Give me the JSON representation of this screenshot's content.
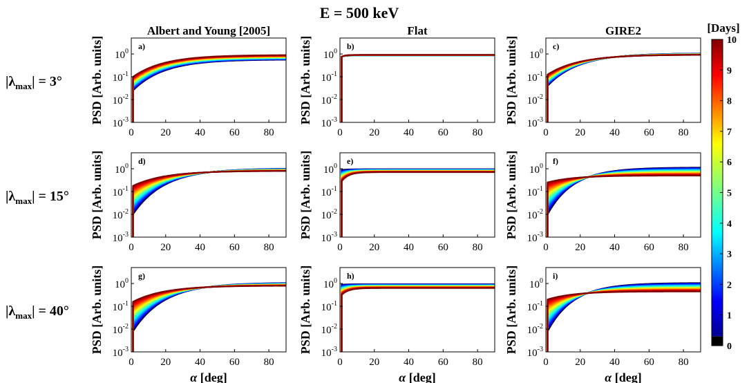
{
  "figure": {
    "title": "E = 500 keV",
    "columns": [
      "Albert and Young [2005]",
      "Flat",
      "GIRE2"
    ],
    "rows": [
      {
        "label_prefix": "|λ",
        "label_sub": "max",
        "label_suffix": "| = 3°"
      },
      {
        "label_prefix": "|λ",
        "label_sub": "max",
        "label_suffix": "| = 15°"
      },
      {
        "label_prefix": "|λ",
        "label_sub": "max",
        "label_suffix": "| = 40°"
      }
    ],
    "ylabel": "PSD [Arb. units]",
    "xlabel_symbol": "α",
    "xlabel_unit": " [deg]",
    "x_ticks": [
      "0",
      "20",
      "40",
      "60",
      "80"
    ],
    "x_tick_values": [
      0,
      20,
      40,
      60,
      80
    ],
    "xlim": [
      0,
      90
    ],
    "ylim_log10": [
      -3,
      0.7
    ],
    "y_ticks": [
      {
        "base": "10",
        "exp": "-3",
        "log": -3
      },
      {
        "base": "10",
        "exp": "-2",
        "log": -2
      },
      {
        "base": "10",
        "exp": "-1",
        "log": -1
      },
      {
        "base": "10",
        "exp": "0",
        "log": 0
      }
    ],
    "yscale": "log",
    "colorbar": {
      "title": "[Days]",
      "ticks": [
        "0",
        "1",
        "2",
        "3",
        "4",
        "5",
        "6",
        "7",
        "8",
        "9",
        "10"
      ],
      "range": [
        0,
        10
      ],
      "colormap": "jet",
      "zero_color": "#000000"
    }
  },
  "chart_data": [
    {
      "type": "line",
      "panel_label": "a)",
      "row": 0,
      "col": 0,
      "start_log": [
        -1.6,
        -1.0
      ],
      "end_log": [
        -0.25,
        -0.05
      ],
      "knee": 18
    },
    {
      "type": "line",
      "panel_label": "b)",
      "row": 0,
      "col": 1,
      "start_log": [
        -0.12,
        -0.12
      ],
      "end_log": [
        -0.07,
        -0.04
      ],
      "knee": 2
    },
    {
      "type": "line",
      "panel_label": "c)",
      "row": 0,
      "col": 2,
      "start_log": [
        -1.4,
        -0.9
      ],
      "end_log": [
        0.02,
        -0.04
      ],
      "knee": 18
    },
    {
      "type": "line",
      "panel_label": "d)",
      "row": 1,
      "col": 0,
      "start_log": [
        -2.0,
        -0.75
      ],
      "end_log": [
        0.0,
        -0.1
      ],
      "knee": 18
    },
    {
      "type": "line",
      "panel_label": "e)",
      "row": 1,
      "col": 1,
      "start_log": [
        -0.05,
        -0.55
      ],
      "end_log": [
        -0.02,
        -0.15
      ],
      "knee": 4
    },
    {
      "type": "line",
      "panel_label": "f)",
      "row": 1,
      "col": 2,
      "start_log": [
        -2.0,
        -0.6
      ],
      "end_log": [
        0.05,
        -0.3
      ],
      "knee": 15
    },
    {
      "type": "line",
      "panel_label": "g)",
      "row": 2,
      "col": 0,
      "start_log": [
        -2.1,
        -0.8
      ],
      "end_log": [
        0.02,
        -0.1
      ],
      "knee": 18
    },
    {
      "type": "line",
      "panel_label": "h)",
      "row": 2,
      "col": 1,
      "start_log": [
        -0.05,
        -0.5
      ],
      "end_log": [
        -0.03,
        -0.2
      ],
      "knee": 4
    },
    {
      "type": "line",
      "panel_label": "i)",
      "row": 2,
      "col": 2,
      "start_log": [
        -2.1,
        -0.7
      ],
      "end_log": [
        0.02,
        -0.35
      ],
      "knee": 15
    }
  ]
}
